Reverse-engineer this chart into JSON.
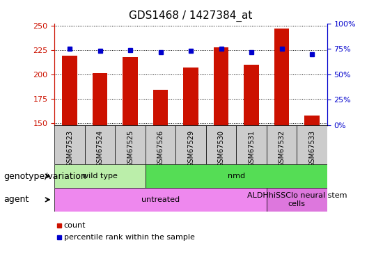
{
  "title": "GDS1468 / 1427384_at",
  "samples": [
    "GSM67523",
    "GSM67524",
    "GSM67525",
    "GSM67526",
    "GSM67529",
    "GSM67530",
    "GSM67531",
    "GSM67532",
    "GSM67533"
  ],
  "counts": [
    219,
    201,
    218,
    184,
    207,
    228,
    210,
    247,
    158
  ],
  "percentiles": [
    75,
    73,
    74,
    72,
    73,
    75,
    72,
    75,
    70
  ],
  "ylim_left": [
    148,
    252
  ],
  "yticks_left": [
    150,
    175,
    200,
    225,
    250
  ],
  "ylim_right": [
    0,
    100
  ],
  "yticks_right": [
    0,
    25,
    50,
    75,
    100
  ],
  "bar_color": "#cc1100",
  "dot_color": "#0000cc",
  "bar_width": 0.5,
  "groups": [
    {
      "label": "wild type",
      "start": 0,
      "end": 3,
      "color": "#bbeeaa"
    },
    {
      "label": "nmd",
      "start": 3,
      "end": 9,
      "color": "#55dd55"
    }
  ],
  "agents": [
    {
      "label": "untreated",
      "start": 0,
      "end": 7,
      "color": "#ee88ee"
    },
    {
      "label": "ALDHhiSSClo neural stem\ncells",
      "start": 7,
      "end": 9,
      "color": "#dd77dd"
    }
  ],
  "genotype_label": "genotype/variation",
  "agent_label": "agent",
  "legend_count": "count",
  "legend_percentile": "percentile rank within the sample",
  "title_fontsize": 11,
  "tick_fontsize": 8,
  "row_label_fontsize": 9,
  "annotation_fontsize": 8,
  "legend_fontsize": 8
}
